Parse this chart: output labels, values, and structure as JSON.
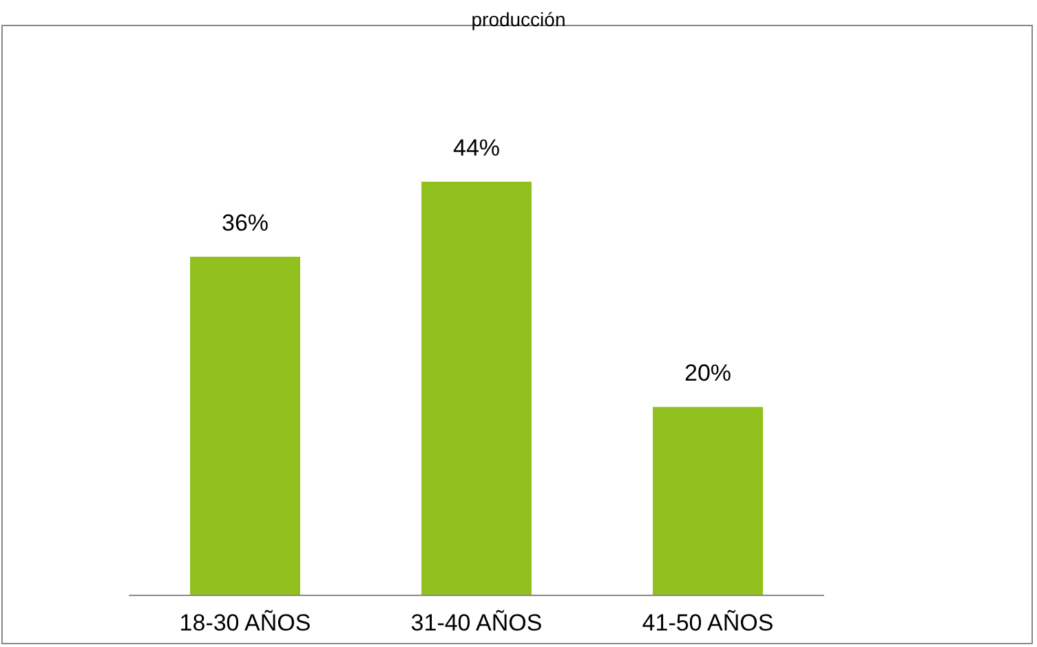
{
  "chart_data": {
    "type": "bar",
    "title": "producción",
    "categories": [
      "18-30 AÑOS",
      "31-40 AÑOS",
      "41-50 AÑOS"
    ],
    "values": [
      36,
      44,
      20
    ],
    "value_labels": [
      "36%",
      "44%",
      "20%"
    ],
    "color": "#92c01f"
  }
}
